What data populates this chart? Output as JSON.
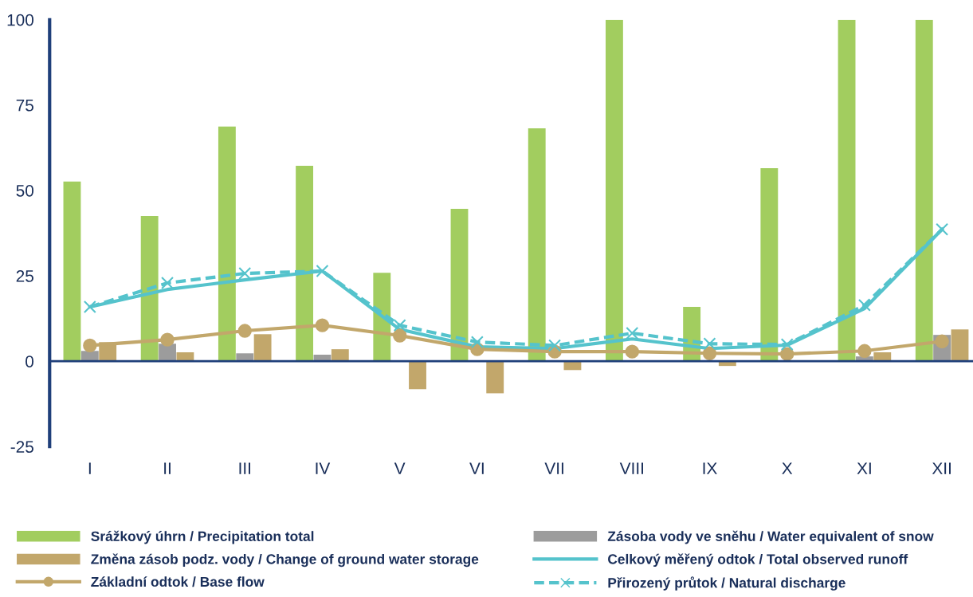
{
  "chart_data": {
    "type": "bar",
    "categories": [
      "I",
      "II",
      "III",
      "IV",
      "V",
      "VI",
      "VII",
      "VIII",
      "IX",
      "X",
      "XI",
      "XII"
    ],
    "series": [
      {
        "name": "Srážkový úhrn / Precipitation total",
        "color": "#a2cd5f",
        "values": [
          52.6,
          42.5,
          68.7,
          57.2,
          25.9,
          44.6,
          68.2,
          100,
          15.9,
          56.5,
          100,
          100
        ]
      },
      {
        "name": "Zásoba vody ve sněhu / Water equivalent of snow",
        "color": "#9c9c9c",
        "values": [
          3.0,
          5.1,
          2.3,
          1.9,
          0,
          0,
          0,
          0,
          0,
          0,
          1.4,
          7.7
        ]
      },
      {
        "name": "Změna zásob podz. vody / Change of ground water storage",
        "color": "#c2a76b",
        "values": [
          5.6,
          2.6,
          7.9,
          3.5,
          -8.2,
          -9.4,
          -2.6,
          0,
          -1.4,
          0,
          2.6,
          9.3
        ]
      },
      {
        "name": "Celkový měřený odtok / Total observed runoff",
        "type": "line",
        "color": "#55c3cc",
        "marker": "none",
        "line_style": "solid",
        "values": [
          15.9,
          21.0,
          23.8,
          26.4,
          9.3,
          4.2,
          3.7,
          6.5,
          3.7,
          4.7,
          15.4,
          38.6
        ]
      },
      {
        "name": "Základní odtok / Base flow",
        "type": "line",
        "color": "#c2a76b",
        "marker": "circle",
        "line_style": "solid",
        "values": [
          4.6,
          6.3,
          8.9,
          10.5,
          7.5,
          3.5,
          2.8,
          2.8,
          2.3,
          2.1,
          3.0,
          5.8
        ]
      },
      {
        "name": "Přirozený průtok / Natural discharge",
        "type": "line",
        "color": "#55c3cc",
        "marker": "cross",
        "line_style": "dashed",
        "values": [
          15.9,
          22.9,
          25.7,
          26.4,
          10.5,
          5.6,
          4.6,
          8.2,
          5.1,
          4.9,
          16.4,
          38.6
        ]
      }
    ],
    "ref_lines": [
      {
        "axis": "y",
        "value": 0,
        "color": "#1f3f7a"
      }
    ],
    "ylim": [
      -25,
      100
    ],
    "yticks": [
      -25,
      0,
      25,
      50,
      75,
      100
    ],
    "grid": false,
    "legend": "bottom"
  }
}
